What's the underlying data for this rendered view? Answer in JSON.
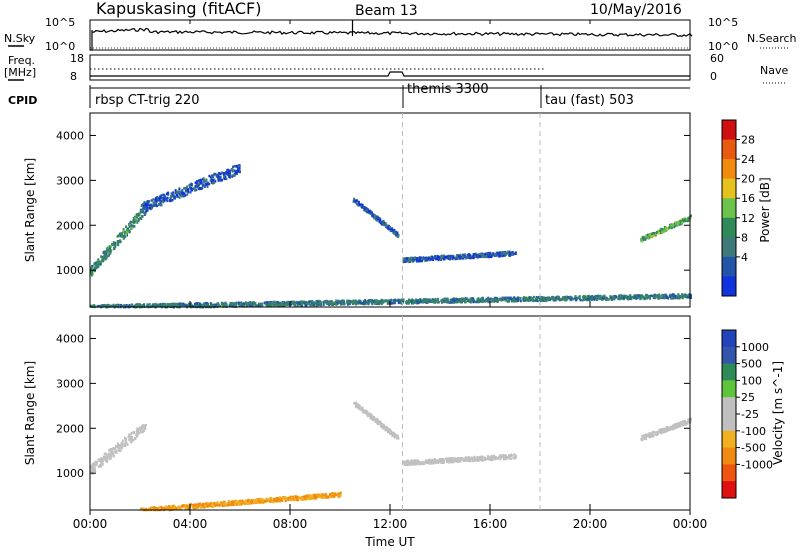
{
  "header": {
    "station": "Kapuskasing (fitACF)",
    "beam": "Beam 13",
    "date": "10/May/2016"
  },
  "noise_panel": {
    "left_label": "N.Sky",
    "right_label": "N.Search",
    "left_ticks": [
      "10^5",
      "10^0"
    ],
    "right_ticks": [
      "10^5",
      "10^0"
    ]
  },
  "freq_panel": {
    "left_label_1": "Freq.",
    "left_label_2": "[MHz]",
    "right_label": "Nave",
    "left_ticks": [
      "18",
      "8"
    ],
    "right_ticks": [
      "60",
      "0"
    ]
  },
  "cpid_panel": {
    "label": "CPID",
    "segments": [
      {
        "name": "rbsp CT-trig 220",
        "start": 0.0
      },
      {
        "name": "themis 3300",
        "start": 12.5
      },
      {
        "name": "tau (fast) 503",
        "start": 18.0
      }
    ]
  },
  "x_axis": {
    "label": "Time UT",
    "ticks": [
      "00:00",
      "04:00",
      "08:00",
      "12:00",
      "16:00",
      "20:00",
      "00:00"
    ]
  },
  "colors": {
    "power": [
      "#1133dd",
      "#2255aa",
      "#3f7a7a",
      "#2e8b57",
      "#6cc24a",
      "#e6c21e",
      "#f28a0d",
      "#e85a10",
      "#d01010"
    ],
    "velocity": [
      "#e01010",
      "#ee5510",
      "#f08a10",
      "#f0b020",
      "#c0c0c0",
      "#c0c0c0",
      "#5ec43a",
      "#2e8b57",
      "#3355aa",
      "#2244bb"
    ]
  },
  "chart_data": [
    {
      "type": "heatmap",
      "panel": "power",
      "ylabel": "Slant Range [km]",
      "xlabel": "",
      "xlim": [
        0,
        24
      ],
      "ylim": [
        180,
        4500
      ],
      "yticks": [
        1000,
        2000,
        3000,
        4000
      ],
      "colorbar": {
        "label": "Power [dB]",
        "ticks": [
          4,
          8,
          12,
          16,
          20,
          24,
          28
        ],
        "range": [
          0,
          32
        ]
      },
      "features": [
        {
          "name": "early range echoes",
          "x": [
            0.0,
            2.2
          ],
          "y": [
            1000,
            2400
          ],
          "value": 12
        },
        {
          "name": "rising streak",
          "x": [
            2.0,
            6.0
          ],
          "y": [
            2400,
            3300
          ],
          "value": 6
        },
        {
          "name": "mid-range slope",
          "x": [
            10.5,
            12.3
          ],
          "y": [
            2600,
            1800
          ],
          "value": 6
        },
        {
          "name": "themis band",
          "x": [
            12.5,
            17.0
          ],
          "y": [
            1250,
            1400
          ],
          "value": 6
        },
        {
          "name": "near ground",
          "x": [
            0.0,
            24.0
          ],
          "y": [
            200,
            450
          ],
          "value": 10
        },
        {
          "name": "late echoes",
          "x": [
            22.0,
            24.0
          ],
          "y": [
            1700,
            2200
          ],
          "value": 16
        }
      ]
    },
    {
      "type": "heatmap",
      "panel": "velocity",
      "ylabel": "Slant Range [km]",
      "xlabel": "Time UT",
      "xlim": [
        0,
        24
      ],
      "ylim": [
        180,
        4500
      ],
      "yticks": [
        1000,
        2000,
        3000,
        4000
      ],
      "colorbar": {
        "label": "Velocity [m s^-1]",
        "ticks": [
          1000,
          500,
          100,
          25,
          -25,
          -100,
          -500,
          -1000
        ],
        "range": [
          -1200,
          1200
        ]
      },
      "features": [
        {
          "name": "early grey echoes",
          "x": [
            0.0,
            2.2
          ],
          "y": [
            1100,
            2100
          ],
          "value": 0
        },
        {
          "name": "mid-range slope",
          "x": [
            10.5,
            12.3
          ],
          "y": [
            2600,
            1800
          ],
          "value": 0
        },
        {
          "name": "themis band",
          "x": [
            12.5,
            17.0
          ],
          "y": [
            1250,
            1400
          ],
          "value": 0
        },
        {
          "name": "near ground",
          "x": [
            2.0,
            10.0
          ],
          "y": [
            200,
            550
          ],
          "value": -100
        },
        {
          "name": "late echoes",
          "x": [
            22.0,
            24.0
          ],
          "y": [
            1800,
            2200
          ],
          "value": 0
        }
      ]
    }
  ]
}
